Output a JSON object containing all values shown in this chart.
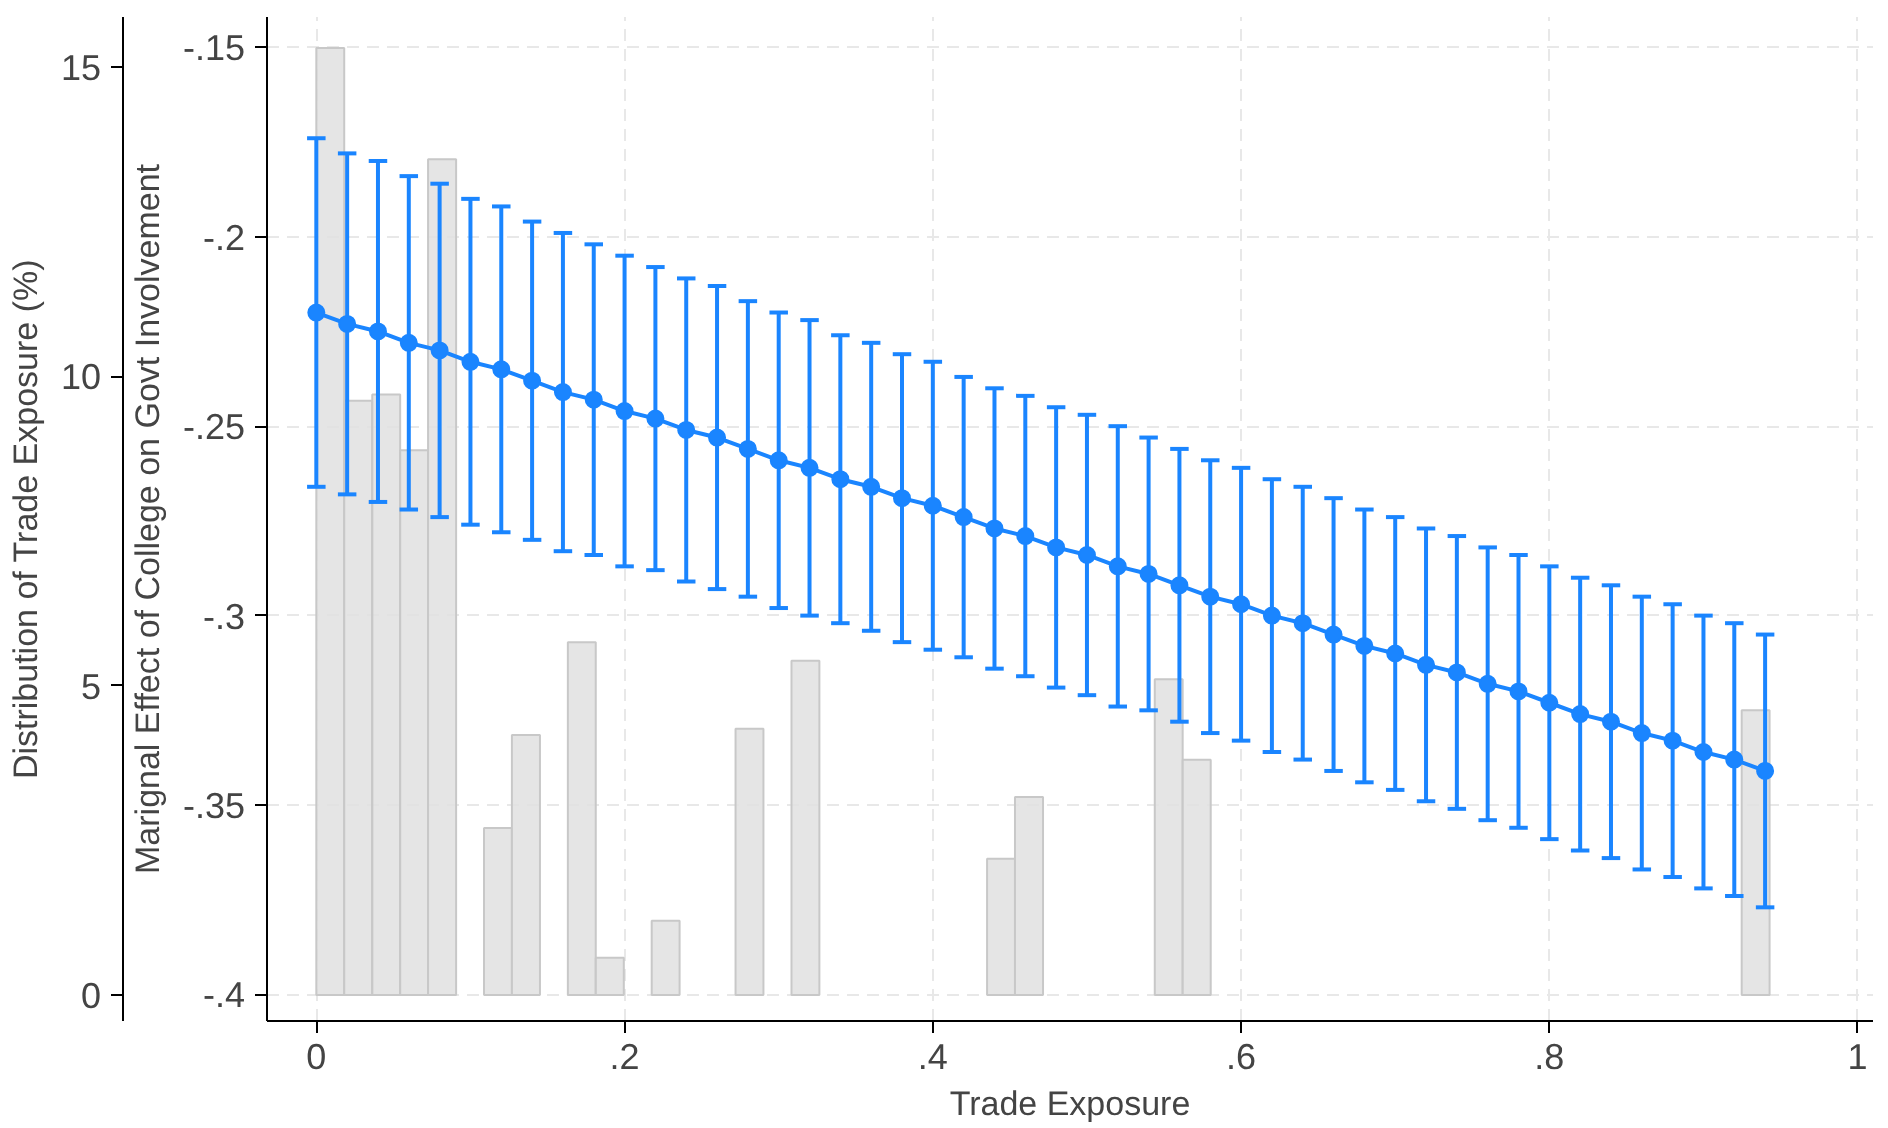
{
  "chart_data": {
    "type": "line",
    "xlabel": "Trade Exposure",
    "ylabel": "Distribution of Trade Exposure (%)",
    "y2label": "Marignal Effect of College on Govt Involvement",
    "xlim": [
      -0.032,
      1.01
    ],
    "xticks": [
      0,
      {
        "value": 0.2,
        "label": ".2"
      },
      {
        "value": 0.4,
        "label": ".4"
      },
      {
        "value": 0.6,
        "label": ".6"
      },
      {
        "value": 0.8,
        "label": ".8"
      },
      1
    ],
    "ylim": [
      -0.42,
      15.8
    ],
    "yticks": [
      0,
      5,
      10,
      15
    ],
    "y2lim": [
      -0.407,
      -0.142
    ],
    "y2ticks": [
      {
        "value": -0.4,
        "label": "-.4"
      },
      {
        "value": -0.35,
        "label": "-.35"
      },
      {
        "value": -0.3,
        "label": "-.3"
      },
      {
        "value": -0.25,
        "label": "-.25"
      },
      {
        "value": -0.2,
        "label": "-.2"
      },
      {
        "value": -0.15,
        "label": "-.15"
      }
    ],
    "grid": true,
    "series": [
      {
        "type": "histogram",
        "axis": "y",
        "color": "#e0e0e0",
        "bins": [
          0,
          0.0181,
          0.0363,
          0.0544,
          0.0725,
          0.0907,
          0.1088,
          0.1269,
          0.1451,
          0.1632,
          0.1813,
          0.1995,
          0.2176,
          0.2357,
          0.2539,
          0.272,
          0.2901,
          0.3083,
          0.3264,
          0.3445,
          0.3627,
          0.3808,
          0.3989,
          0.4171,
          0.4352,
          0.4533,
          0.4715,
          0.4896,
          0.5077,
          0.5259,
          0.544,
          0.5621,
          0.5803,
          0.5984,
          0.6165,
          0.6347,
          0.6528,
          0.6709,
          0.6891,
          0.7072,
          0.7253,
          0.7435,
          0.7616,
          0.7797,
          0.7979,
          0.816,
          0.8341,
          0.8523,
          0.8704,
          0.8885,
          0.9067,
          0.9248,
          0.9429
        ],
        "values": [
          15.3,
          9.6,
          9.7,
          8.8,
          13.5,
          0,
          2.7,
          4.2,
          0,
          5.7,
          0.6,
          0,
          1.2,
          0,
          0,
          4.3,
          0,
          5.4,
          0,
          0,
          0,
          0,
          0,
          0,
          2.2,
          3.2,
          0,
          0,
          0,
          0,
          5.1,
          3.8,
          0,
          0,
          0,
          0,
          0,
          0,
          0,
          0,
          0,
          0,
          0,
          0,
          0,
          0,
          0,
          0,
          0,
          0,
          0,
          4.6
        ]
      },
      {
        "type": "line",
        "axis": "y2",
        "color": "#1a85ff",
        "marker": "circle",
        "line_style": "solid",
        "x": [
          0,
          0.02,
          0.04,
          0.06,
          0.08,
          0.1,
          0.12,
          0.14,
          0.16,
          0.18,
          0.2,
          0.22,
          0.24,
          0.26,
          0.28,
          0.3,
          0.32,
          0.34,
          0.36,
          0.38,
          0.4,
          0.42,
          0.44,
          0.46,
          0.48,
          0.5,
          0.52,
          0.54,
          0.56,
          0.58,
          0.6,
          0.62,
          0.64,
          0.66,
          0.68,
          0.7,
          0.72,
          0.74,
          0.76,
          0.78,
          0.8,
          0.82,
          0.84,
          0.86,
          0.88,
          0.9,
          0.92,
          0.94
        ],
        "values": [
          -0.22,
          -0.223,
          -0.225,
          -0.228,
          -0.23,
          -0.233,
          -0.235,
          -0.238,
          -0.241,
          -0.243,
          -0.246,
          -0.248,
          -0.251,
          -0.253,
          -0.256,
          -0.259,
          -0.261,
          -0.264,
          -0.266,
          -0.269,
          -0.271,
          -0.274,
          -0.277,
          -0.279,
          -0.282,
          -0.284,
          -0.287,
          -0.289,
          -0.292,
          -0.295,
          -0.297,
          -0.3,
          -0.302,
          -0.305,
          -0.308,
          -0.31,
          -0.313,
          -0.315,
          -0.318,
          -0.32,
          -0.323,
          -0.326,
          -0.328,
          -0.331,
          -0.333,
          -0.336,
          -0.338,
          -0.341
        ],
        "errors": [
          0.046,
          0.045,
          0.045,
          0.044,
          0.044,
          0.043,
          0.043,
          0.042,
          0.042,
          0.041,
          0.041,
          0.04,
          0.04,
          0.04,
          0.039,
          0.039,
          0.039,
          0.038,
          0.038,
          0.038,
          0.038,
          0.037,
          0.037,
          0.037,
          0.037,
          0.037,
          0.037,
          0.036,
          0.036,
          0.036,
          0.036,
          0.036,
          0.036,
          0.036,
          0.036,
          0.036,
          0.036,
          0.036,
          0.036,
          0.036,
          0.036,
          0.036,
          0.036,
          0.036,
          0.036,
          0.036,
          0.036,
          0.036
        ]
      }
    ]
  }
}
